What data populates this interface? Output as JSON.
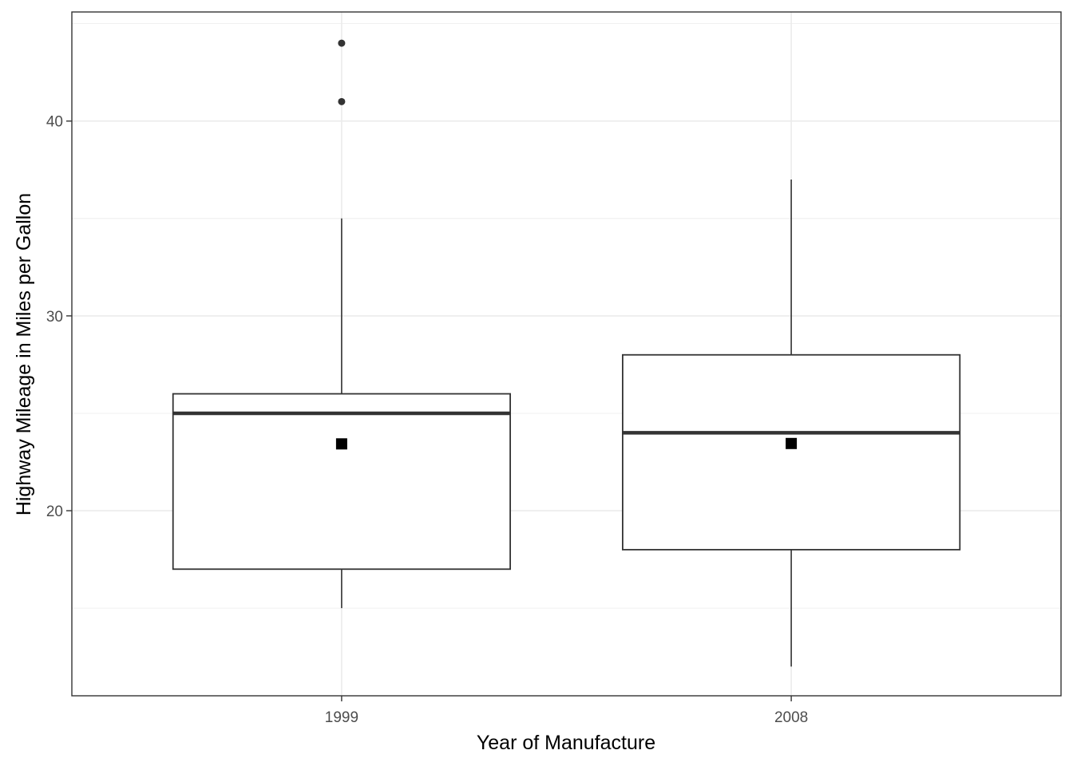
{
  "chart_data": {
    "type": "boxplot",
    "xlabel": "Year of Manufacture",
    "ylabel": "Highway Mileage in Miles per Gallon",
    "categories": [
      "1999",
      "2008"
    ],
    "ylim": [
      10.5,
      45.6
    ],
    "yticks": [
      20,
      30,
      40
    ],
    "ytick_labels": [
      "20",
      "30",
      "40"
    ],
    "grid": true,
    "boxes": [
      {
        "category": "1999",
        "whisker_low": 15,
        "q1": 17,
        "median": 25,
        "q3": 26,
        "whisker_high": 35,
        "mean": 23.43,
        "outliers": [
          44,
          41
        ]
      },
      {
        "category": "2008",
        "whisker_low": 12,
        "q1": 18,
        "median": 24,
        "q3": 28,
        "whisker_high": 37,
        "mean": 23.45,
        "outliers": []
      }
    ],
    "colors": {
      "box_line": "#333333",
      "mean_marker": "#000000",
      "grid": "#ebebeb",
      "panel_border": "#333333",
      "outlier": "#333333"
    }
  }
}
